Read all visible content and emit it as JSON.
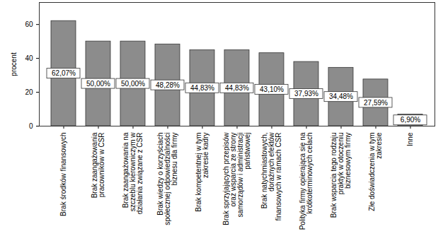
{
  "chart_data": {
    "type": "bar",
    "y_label": "procent",
    "categories": [
      "Brak środków finansowych",
      "Brak zaangażowania pracowników w CSR",
      "Brak zaangażowania na szczeblu kierowniczym w działania związane z CSR",
      "Brak wiedzy o korzyściach społecznej odpowiedzialności biznesu dla firmy",
      "Brak kompetentnej w tym zakresie kadry",
      "Brak sprzyjających przepisów oraz wsparcia ze strony samorządów i administracji państwowej",
      "Brak natychmiastowych, doraźnych efektów finansowych w ramach CSR",
      "Polityka firmy opierająca się na krótkoterminowych celach",
      "Brak wsparcia tego rodzaju praktyk w otoczeniu biznesowym firmy",
      "Złe doświadczenia w tym zakresie",
      "Inne"
    ],
    "values": [
      62.07,
      50.0,
      50.0,
      48.28,
      44.83,
      44.83,
      43.1,
      37.93,
      34.48,
      27.59,
      6.9
    ],
    "value_labels": [
      "62,07%",
      "50,00%",
      "50,00%",
      "48,28%",
      "44,83%",
      "44,83%",
      "43,10%",
      "37,93%",
      "34,48%",
      "27,59%",
      "6,90%"
    ],
    "data_labels": true,
    "color": "#8c8c8c",
    "ylim": [
      0,
      73
    ],
    "yticks": [
      0,
      20,
      40,
      60
    ],
    "grid": false
  }
}
